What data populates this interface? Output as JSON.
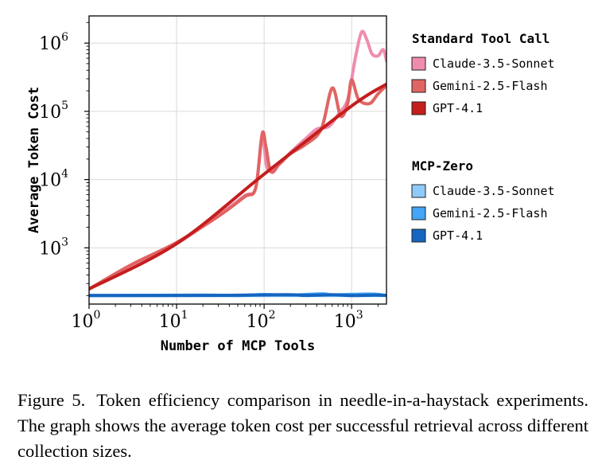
{
  "chart_data": {
    "type": "line",
    "xscale": "log",
    "yscale": "log",
    "xlim": [
      1,
      2500
    ],
    "ylim": [
      150,
      2500000
    ],
    "xlabel": "Number of MCP Tools",
    "ylabel": "Average Token Cost",
    "grid": true,
    "legend_position": "right",
    "x_ticks": [
      {
        "value": 1,
        "base": "10",
        "exp": "0"
      },
      {
        "value": 10,
        "base": "10",
        "exp": "1"
      },
      {
        "value": 100,
        "base": "10",
        "exp": "2"
      },
      {
        "value": 1000,
        "base": "10",
        "exp": "3"
      }
    ],
    "y_ticks": [
      {
        "value": 1000,
        "base": "10",
        "exp": "3"
      },
      {
        "value": 10000,
        "base": "10",
        "exp": "4"
      },
      {
        "value": 100000,
        "base": "10",
        "exp": "5"
      },
      {
        "value": 1000000,
        "base": "10",
        "exp": "6"
      }
    ],
    "legend_groups": [
      {
        "title": "Standard Tool Call",
        "series": [
          0,
          1,
          2
        ]
      },
      {
        "title": "MCP-Zero",
        "series": [
          3,
          4,
          5
        ]
      }
    ],
    "series": [
      {
        "name": "Claude-3.5-Sonnet",
        "color": "#f08cb0",
        "points": [
          [
            1,
            250
          ],
          [
            3,
            530
          ],
          [
            10,
            1150
          ],
          [
            30,
            3000
          ],
          [
            60,
            5800
          ],
          [
            80,
            7500
          ],
          [
            95,
            42000
          ],
          [
            110,
            14000
          ],
          [
            150,
            17000
          ],
          [
            200,
            25000
          ],
          [
            300,
            40000
          ],
          [
            400,
            55000
          ],
          [
            550,
            60000
          ],
          [
            700,
            90000
          ],
          [
            900,
            150000
          ],
          [
            1100,
            600000
          ],
          [
            1300,
            1450000
          ],
          [
            1500,
            1100000
          ],
          [
            1700,
            700000
          ],
          [
            2000,
            650000
          ],
          [
            2300,
            800000
          ],
          [
            2500,
            550000
          ]
        ]
      },
      {
        "name": "Gemini-2.5-Flash",
        "color": "#e06464",
        "points": [
          [
            1,
            250
          ],
          [
            3,
            560
          ],
          [
            10,
            1200
          ],
          [
            30,
            2900
          ],
          [
            60,
            5600
          ],
          [
            80,
            7500
          ],
          [
            95,
            47000
          ],
          [
            105,
            30000
          ],
          [
            120,
            13000
          ],
          [
            150,
            17000
          ],
          [
            200,
            24000
          ],
          [
            300,
            33000
          ],
          [
            450,
            55000
          ],
          [
            600,
            220000
          ],
          [
            750,
            85000
          ],
          [
            900,
            130000
          ],
          [
            1000,
            290000
          ],
          [
            1200,
            150000
          ],
          [
            1600,
            130000
          ],
          [
            2000,
            180000
          ],
          [
            2500,
            240000
          ]
        ]
      },
      {
        "name": "GPT-4.1",
        "color": "#c41e1e",
        "points": [
          [
            1,
            250
          ],
          [
            10,
            1150
          ],
          [
            100,
            12000
          ],
          [
            1000,
            120000
          ],
          [
            2500,
            250000
          ]
        ]
      },
      {
        "name": "Claude-3.5-Sonnet",
        "color": "#90caf9",
        "points": [
          [
            1,
            200
          ],
          [
            2500,
            200
          ]
        ]
      },
      {
        "name": "Gemini-2.5-Flash",
        "color": "#42a5f5",
        "points": [
          [
            1,
            200
          ],
          [
            20,
            203
          ],
          [
            50,
            200
          ],
          [
            100,
            207
          ],
          [
            200,
            203
          ],
          [
            450,
            212
          ],
          [
            600,
            205
          ],
          [
            1000,
            208
          ],
          [
            1800,
            210
          ],
          [
            2500,
            200
          ]
        ]
      },
      {
        "name": "GPT-4.1",
        "color": "#1565c0",
        "points": [
          [
            1,
            200
          ],
          [
            30,
            201
          ],
          [
            180,
            206
          ],
          [
            300,
            201
          ],
          [
            600,
            205
          ],
          [
            1000,
            200
          ],
          [
            1800,
            203
          ],
          [
            2500,
            201
          ]
        ]
      }
    ]
  },
  "caption": {
    "label": "Figure 5.",
    "text": "Token efficiency comparison in needle-in-a-haystack experiments. The graph shows the average token cost per successful retrieval across different collection sizes."
  }
}
